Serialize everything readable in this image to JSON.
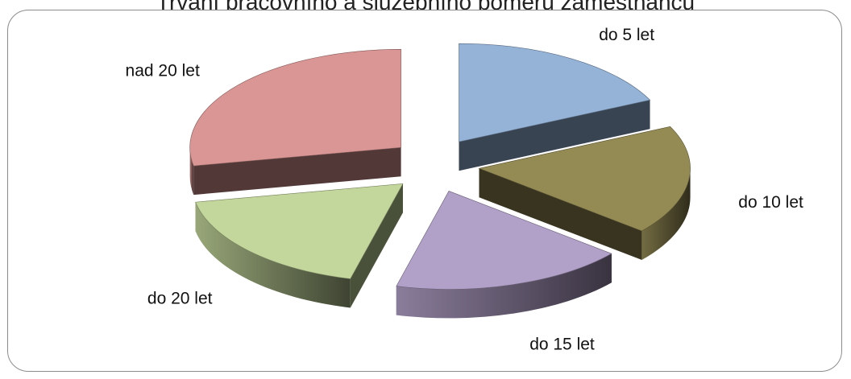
{
  "chart_data": {
    "type": "pie",
    "title": "Trvání pracovního a služebního poměru zaměstnanců",
    "categories": [
      "do 5 let",
      "do 10 let",
      "do 15 let",
      "do 20 let",
      "nad 20 let"
    ],
    "values": [
      18,
      18,
      18,
      18,
      28
    ],
    "colors": [
      "#95B3D7",
      "#948A54",
      "#B1A0C7",
      "#C3D69B",
      "#D99694"
    ],
    "exploded": true,
    "three_d": true,
    "legend": "none"
  }
}
